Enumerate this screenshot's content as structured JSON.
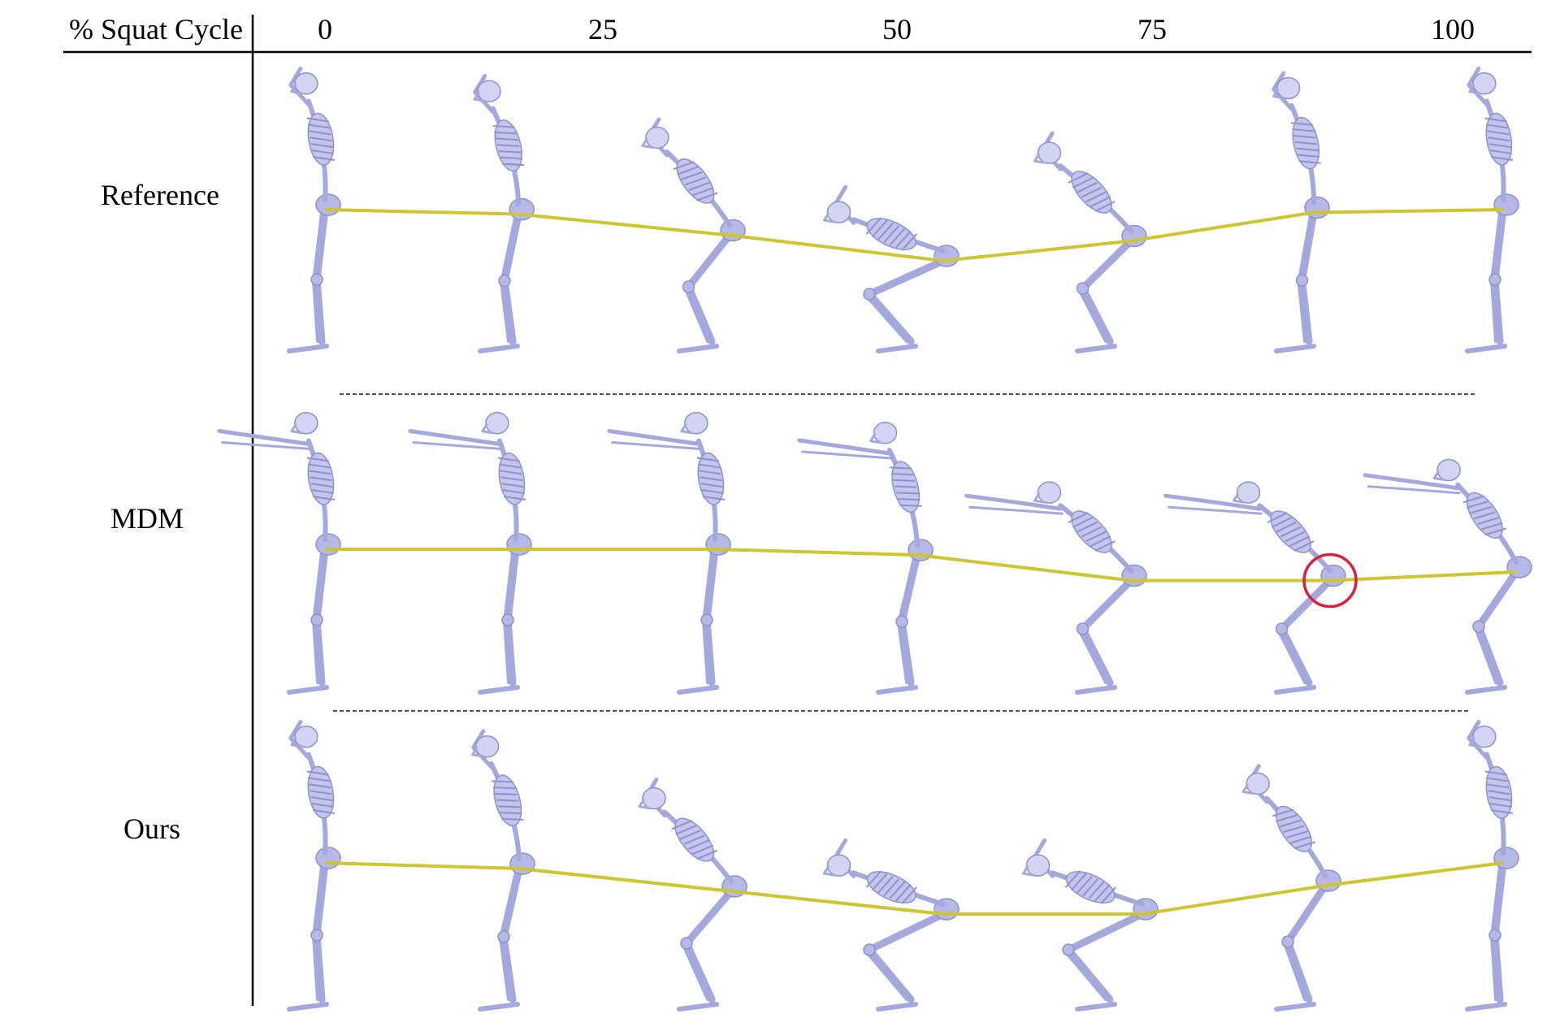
{
  "header": {
    "label": "% Squat Cycle",
    "ticks": [
      "0",
      "25",
      "50",
      "75",
      "100"
    ]
  },
  "rows": [
    {
      "label": "Reference",
      "depths": [
        0,
        0.08,
        0.45,
        0.9,
        0.55,
        0.05,
        0
      ],
      "arms": "head",
      "highlight": null
    },
    {
      "label": "MDM",
      "depths": [
        0,
        0,
        0,
        0.1,
        0.55,
        0.55,
        0.4
      ],
      "arms": "forward",
      "highlight": 5
    },
    {
      "label": "Ours",
      "depths": [
        0,
        0.1,
        0.5,
        0.9,
        0.9,
        0.4,
        0
      ],
      "arms": "head",
      "highlight": null
    }
  ],
  "colors": {
    "skeleton": "#a4a8dc",
    "hip_trajectory": "#cfc52e",
    "highlight_circle": "#d8213f"
  }
}
